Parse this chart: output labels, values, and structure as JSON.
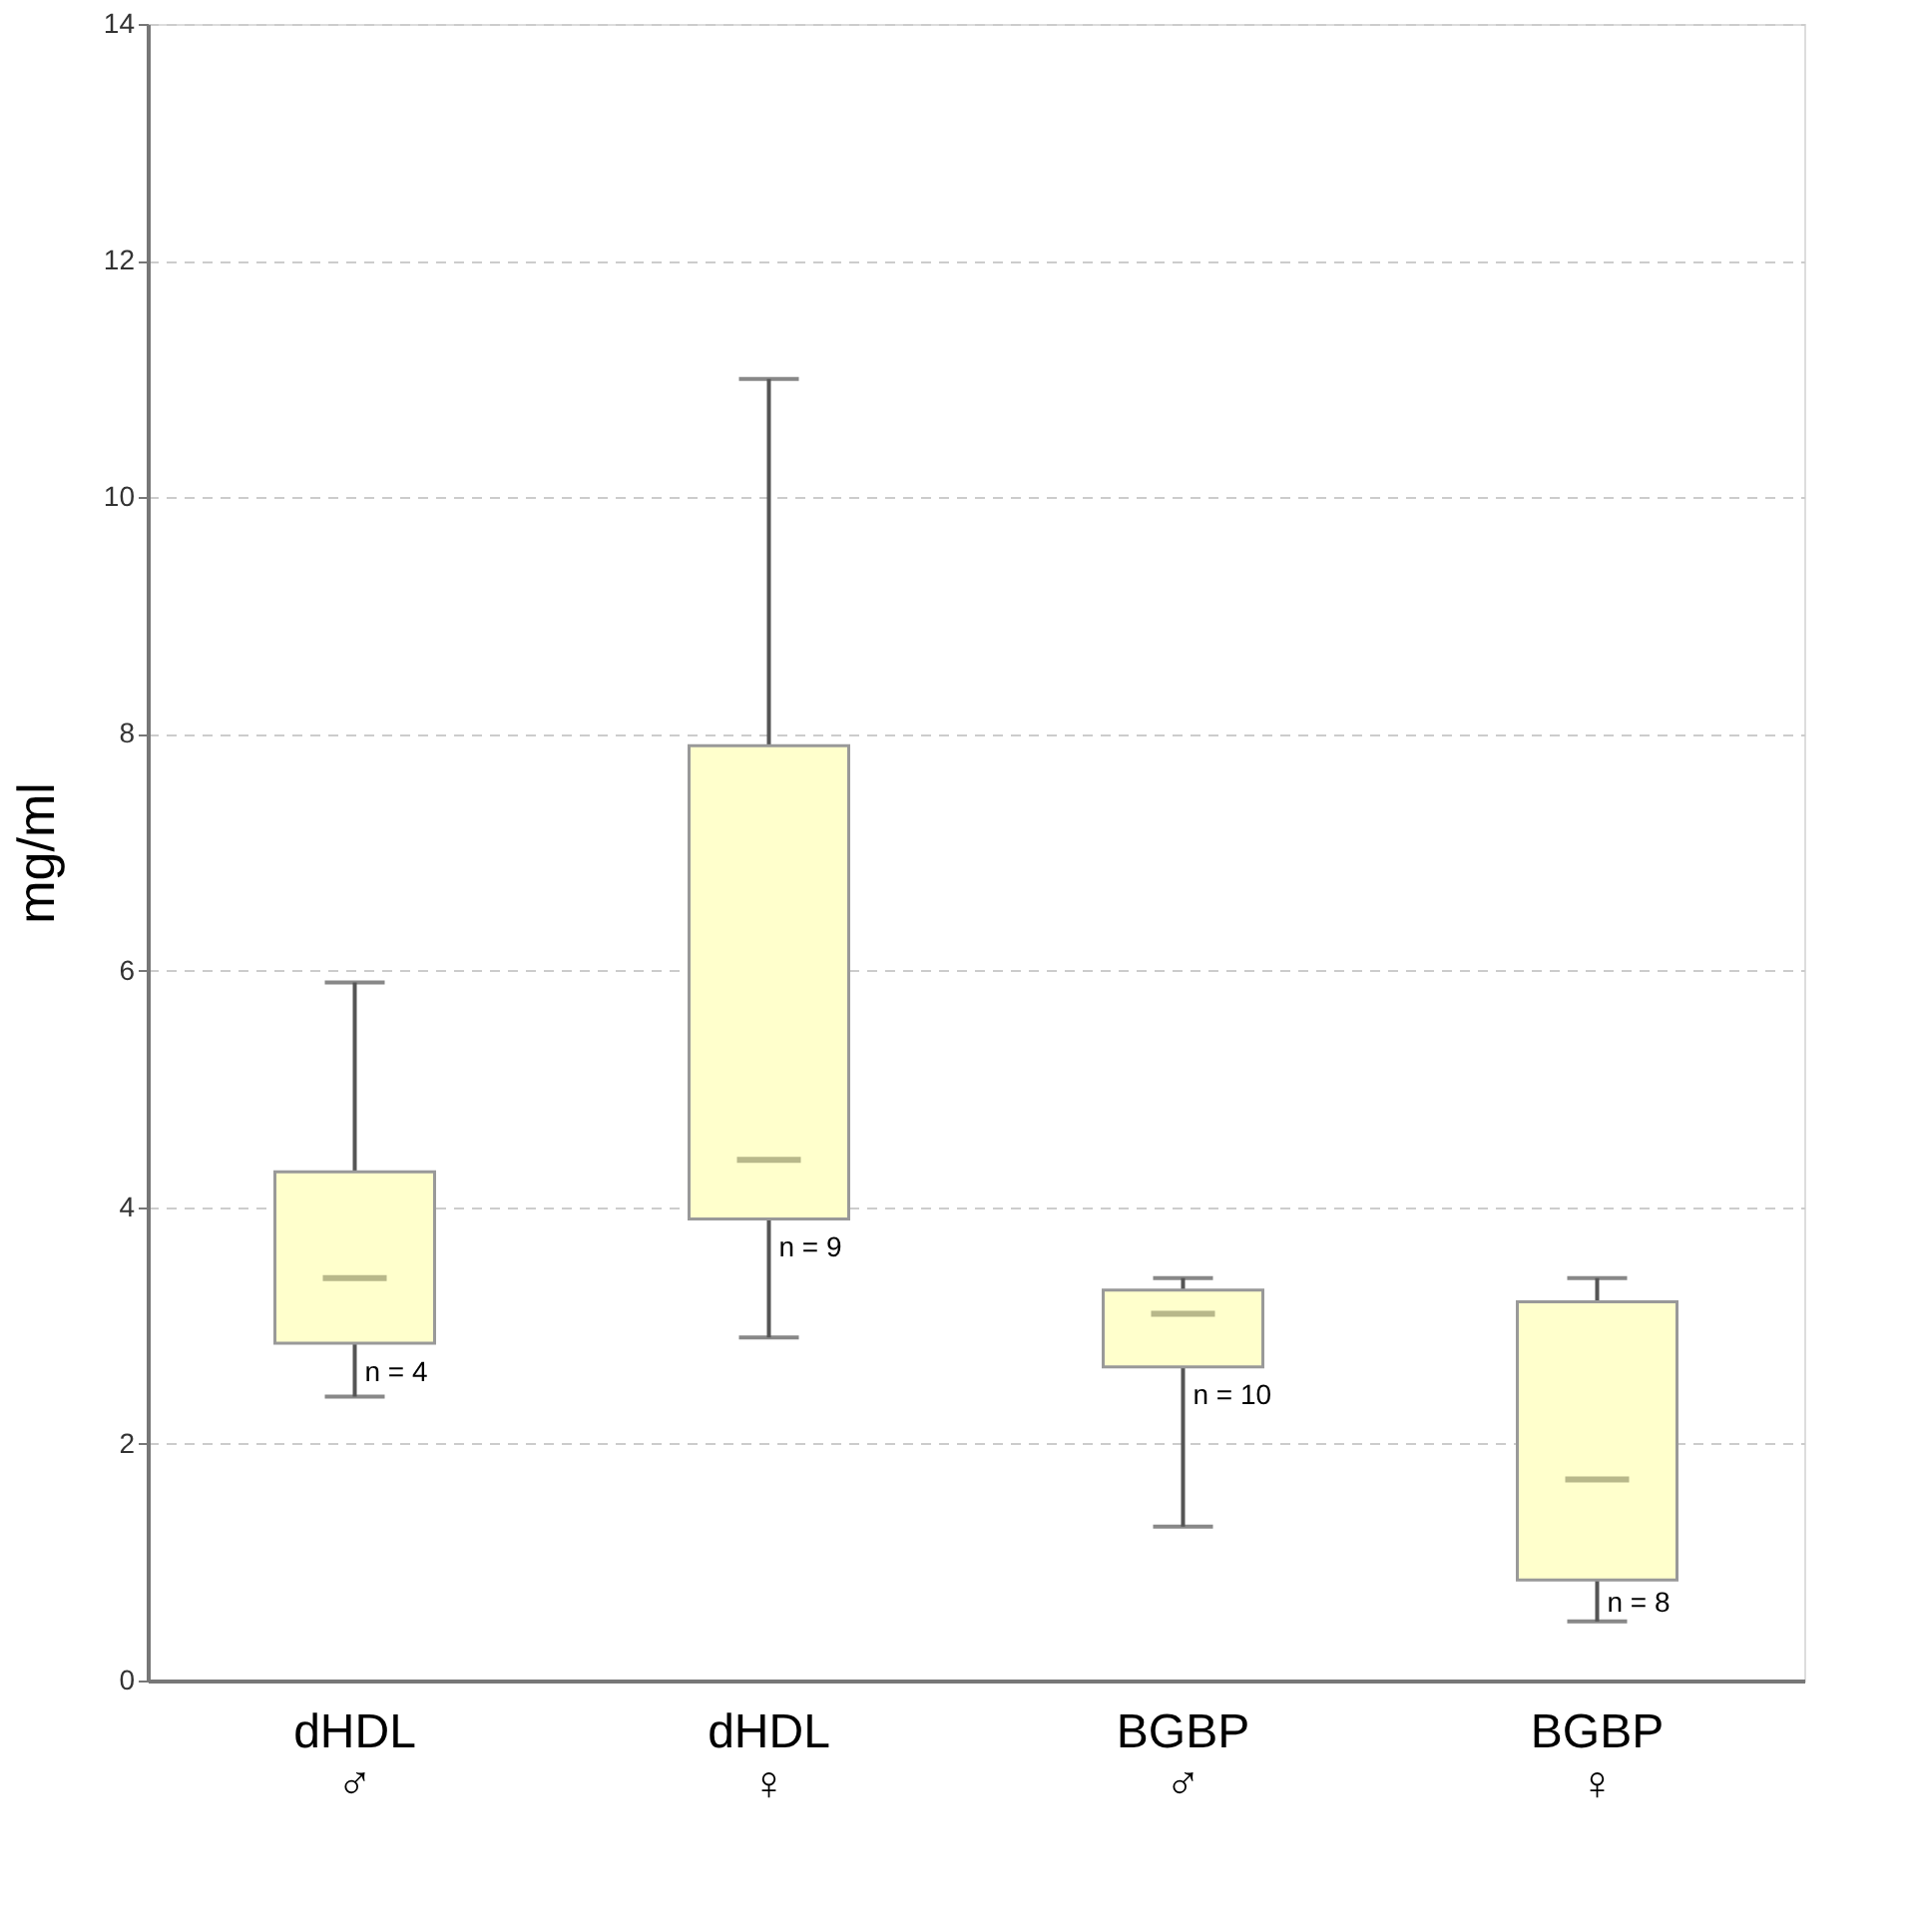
{
  "chart_data": {
    "type": "box",
    "ylabel": "mg/ml",
    "categories": [
      "dHDL\n♂",
      "dHDL\n♀",
      "BGBP\n♂",
      "BGBP\n♀"
    ],
    "boxes": [
      {
        "low": 2.4,
        "q1": 2.85,
        "median": 3.4,
        "q3": 4.3,
        "high": 5.9
      },
      {
        "low": 2.9,
        "q1": 3.9,
        "median": 4.4,
        "q3": 7.9,
        "high": 11.0
      },
      {
        "low": 1.3,
        "q1": 2.65,
        "median": 3.1,
        "q3": 3.3,
        "high": 3.4
      },
      {
        "low": 0.5,
        "q1": 0.85,
        "median": 1.7,
        "q3": 3.2,
        "high": 3.4
      }
    ],
    "color": "#ffffcc",
    "ylim": [
      0,
      14
    ],
    "yticks": [
      0,
      2,
      4,
      6,
      8,
      10,
      12,
      14
    ],
    "grid": "y",
    "annotations": [
      {
        "text": "n = 4",
        "x": "dHDL\n♂",
        "y": 2.6
      },
      {
        "text": "n = 9",
        "x": "dHDL\n♀",
        "y": 3.65
      },
      {
        "text": "n = 10",
        "x": "BGBP\n♂",
        "y": 2.4
      },
      {
        "text": "n = 8",
        "x": "BGBP\n♀",
        "y": 0.65
      }
    ]
  }
}
